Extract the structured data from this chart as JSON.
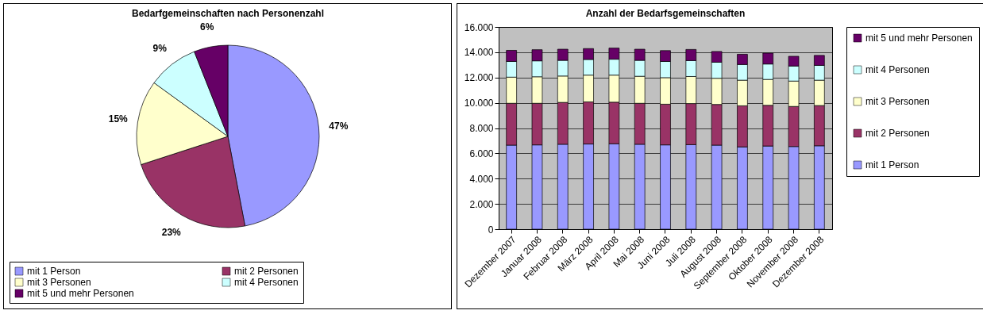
{
  "chart_data": [
    {
      "type": "pie",
      "title": "Bedarfgemeinschaften nach Personenzahl",
      "categories": [
        "mit 1 Person",
        "mit 2 Personen",
        "mit 3 Personen",
        "mit 4 Personen",
        "mit 5 und mehr Personen"
      ],
      "values": [
        47,
        23,
        15,
        9,
        6
      ],
      "colors": [
        "#9999ff",
        "#993366",
        "#ffffcc",
        "#ccffff",
        "#660066"
      ],
      "value_labels": [
        "47%",
        "23%",
        "15%",
        "9%",
        "6%"
      ],
      "legend": "bottom"
    },
    {
      "type": "bar",
      "title": "Anzahl der Bedarfsgemeinschaften",
      "stacked": true,
      "categories": [
        "Dezember 2007",
        "Januar 2008",
        "Februar 2008",
        "März 2008",
        "April 2008",
        "Mai 2008",
        "Juni 2008",
        "Juli 2008",
        "August 2008",
        "September 2008",
        "Oktober 2008",
        "November 2008",
        "Dezember 2008"
      ],
      "series": [
        {
          "name": "mit 1 Person",
          "color": "#9999ff",
          "values": [
            6650,
            6670,
            6720,
            6740,
            6760,
            6720,
            6670,
            6690,
            6650,
            6510,
            6580,
            6540,
            6600
          ]
        },
        {
          "name": "mit 2 Personen",
          "color": "#993366",
          "values": [
            3310,
            3290,
            3310,
            3330,
            3290,
            3240,
            3220,
            3250,
            3220,
            3250,
            3220,
            3170,
            3180
          ]
        },
        {
          "name": "mit 3 Personen",
          "color": "#ffffcc",
          "values": [
            2070,
            2100,
            2090,
            2120,
            2140,
            2140,
            2100,
            2140,
            2070,
            2030,
            2050,
            2010,
            2010
          ]
        },
        {
          "name": "mit 4 Personen",
          "color": "#ccffff",
          "values": [
            1240,
            1260,
            1240,
            1240,
            1260,
            1260,
            1280,
            1260,
            1270,
            1240,
            1220,
            1190,
            1170
          ]
        },
        {
          "name": "mit 5 und mehr Personen",
          "color": "#660066",
          "values": [
            880,
            880,
            880,
            860,
            880,
            880,
            860,
            880,
            850,
            810,
            860,
            770,
            790
          ]
        }
      ],
      "ylim": [
        0,
        16000
      ],
      "yticks": [
        0,
        {
          "value": 2000,
          "label": "2.000"
        },
        {
          "value": 4000,
          "label": "4.000"
        },
        {
          "value": 6000,
          "label": "6.000"
        },
        {
          "value": 8000,
          "label": "8.000"
        },
        {
          "value": 10000,
          "label": "10.000"
        },
        {
          "value": 12000,
          "label": "12.000"
        },
        {
          "value": 14000,
          "label": "14.000"
        },
        {
          "value": 16000,
          "label": "16.000"
        }
      ],
      "grid": "y",
      "legend": "right"
    }
  ]
}
